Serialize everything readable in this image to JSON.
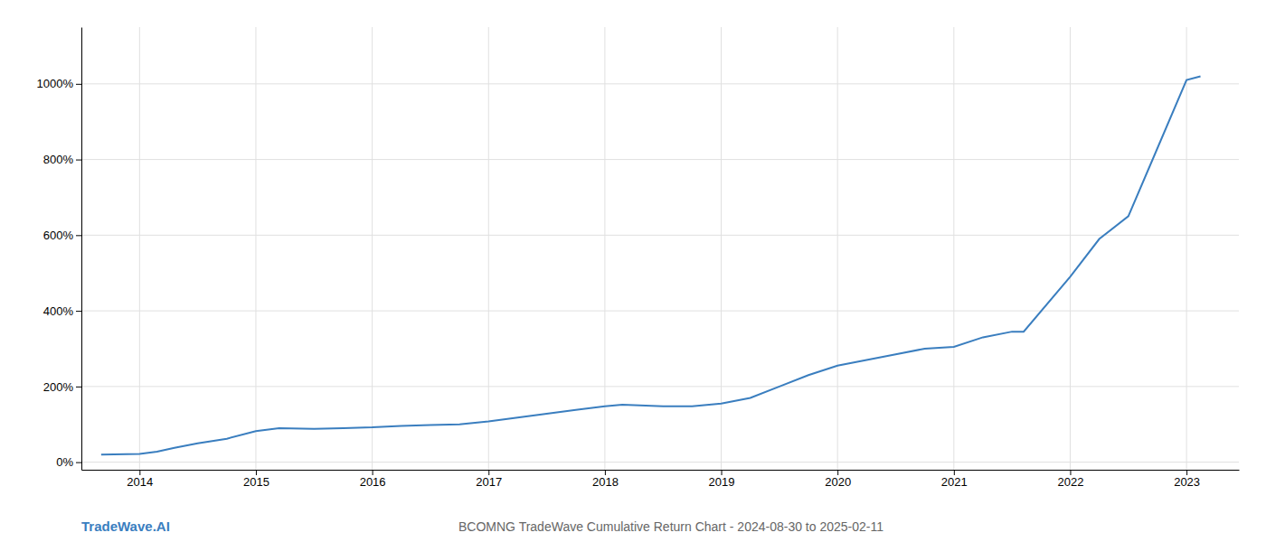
{
  "chart_data": {
    "type": "line",
    "title": "BCOMNG TradeWave Cumulative Return Chart - 2024-08-30 to 2025-02-11",
    "annotations": [
      {
        "text": "TradeWave.AI",
        "color": "#3a7ebf"
      }
    ],
    "color": "#3a7ebf",
    "x": [
      2013.67,
      2014.0,
      2014.15,
      2014.3,
      2014.5,
      2014.75,
      2015.0,
      2015.2,
      2015.5,
      2015.75,
      2016.0,
      2016.25,
      2016.5,
      2016.75,
      2017.0,
      2017.25,
      2017.5,
      2017.75,
      2018.0,
      2018.15,
      2018.3,
      2018.5,
      2018.75,
      2019.0,
      2019.25,
      2019.5,
      2019.75,
      2020.0,
      2020.25,
      2020.5,
      2020.75,
      2021.0,
      2021.25,
      2021.5,
      2021.6,
      2022.0,
      2022.25,
      2022.5,
      2023.0,
      2023.12
    ],
    "values": [
      20,
      22,
      28,
      38,
      50,
      62,
      82,
      90,
      88,
      90,
      92,
      96,
      98,
      100,
      108,
      118,
      128,
      138,
      148,
      152,
      150,
      148,
      148,
      155,
      170,
      200,
      230,
      255,
      270,
      285,
      300,
      305,
      330,
      345,
      345,
      490,
      590,
      650,
      1010,
      1020
    ],
    "xlim": [
      2013.5,
      2023.45
    ],
    "xticks": [
      2014,
      2015,
      2016,
      2017,
      2018,
      2019,
      2020,
      2021,
      2022,
      2023
    ],
    "ylim": [
      -20,
      1150
    ],
    "yticks": [
      {
        "value": 0,
        "label": "0%"
      },
      {
        "value": 200,
        "label": "200%"
      },
      {
        "value": 400,
        "label": "400%"
      },
      {
        "value": 600,
        "label": "600%"
      },
      {
        "value": 800,
        "label": "800%"
      },
      {
        "value": 1000,
        "label": "1000%"
      }
    ],
    "grid": true
  }
}
